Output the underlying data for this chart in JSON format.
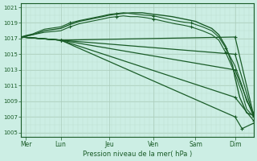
{
  "bg_color": "#cceee4",
  "grid_color_major": "#aaccbb",
  "grid_color_minor": "#bbddcc",
  "line_color": "#1a5c28",
  "tick_label_color": "#1a5c28",
  "xlabel": "Pression niveau de la mer( hPa )",
  "ylim": [
    1004.5,
    1021.5
  ],
  "yticks": [
    1005,
    1007,
    1009,
    1011,
    1013,
    1015,
    1017,
    1019,
    1021
  ],
  "xtick_labels": [
    "Mer",
    "Lun",
    "Jeu",
    "Ven",
    "Sam",
    "Dim"
  ],
  "xtick_positions": [
    0.02,
    0.17,
    0.38,
    0.57,
    0.75,
    0.92
  ],
  "lines": [
    {
      "x": [
        0.0,
        0.02,
        0.05,
        0.1,
        0.17,
        0.21,
        0.25,
        0.3,
        0.35,
        0.38,
        0.43,
        0.48,
        0.52,
        0.57,
        0.6,
        0.65,
        0.7,
        0.75,
        0.78,
        0.82,
        0.85,
        0.88,
        0.91,
        0.92,
        0.94,
        0.97,
        1.0
      ],
      "y": [
        1017.2,
        1017.3,
        1017.5,
        1018.0,
        1018.3,
        1018.8,
        1019.2,
        1019.5,
        1019.8,
        1020.0,
        1020.2,
        1020.3,
        1020.3,
        1020.1,
        1020.0,
        1019.8,
        1019.5,
        1019.2,
        1018.8,
        1018.3,
        1017.5,
        1016.0,
        1013.5,
        1012.0,
        1009.5,
        1007.5,
        1007.2
      ],
      "marker": null,
      "lw": 1.0
    },
    {
      "x": [
        0.0,
        0.02,
        0.05,
        0.1,
        0.17,
        0.21,
        0.25,
        0.3,
        0.35,
        0.38,
        0.41,
        0.44,
        0.47,
        0.5,
        0.53,
        0.57,
        0.6,
        0.63,
        0.66,
        0.7,
        0.73,
        0.75,
        0.78,
        0.82,
        0.85,
        0.88,
        0.92,
        0.95,
        0.97,
        1.0
      ],
      "y": [
        1017.2,
        1017.4,
        1017.6,
        1018.2,
        1018.5,
        1019.0,
        1019.3,
        1019.6,
        1019.9,
        1020.1,
        1020.2,
        1020.3,
        1020.2,
        1020.1,
        1020.0,
        1019.9,
        1019.7,
        1019.5,
        1019.3,
        1019.1,
        1019.0,
        1018.8,
        1018.5,
        1018.0,
        1017.2,
        1015.8,
        1013.5,
        1011.0,
        1009.0,
        1007.5
      ],
      "marker": "+",
      "lw": 0.8
    },
    {
      "x": [
        0.0,
        0.02,
        0.05,
        0.1,
        0.17,
        0.21,
        0.25,
        0.3,
        0.35,
        0.38,
        0.41,
        0.44,
        0.47,
        0.5,
        0.53,
        0.57,
        0.6,
        0.63,
        0.66,
        0.7,
        0.73,
        0.75,
        0.78,
        0.82,
        0.85,
        0.88,
        0.92,
        0.95,
        0.97,
        1.0
      ],
      "y": [
        1017.2,
        1017.3,
        1017.5,
        1017.8,
        1018.0,
        1018.5,
        1018.9,
        1019.2,
        1019.5,
        1019.7,
        1019.8,
        1019.9,
        1019.8,
        1019.8,
        1019.7,
        1019.5,
        1019.3,
        1019.1,
        1018.9,
        1018.7,
        1018.5,
        1018.3,
        1018.0,
        1017.5,
        1016.8,
        1015.2,
        1012.5,
        1010.0,
        1008.0,
        1007.0
      ],
      "marker": "+",
      "lw": 0.8
    },
    {
      "x": [
        0.0,
        0.17,
        0.92,
        1.0
      ],
      "y": [
        1017.2,
        1016.8,
        1017.2,
        1007.2
      ],
      "marker": "+",
      "lw": 0.9
    },
    {
      "x": [
        0.0,
        0.17,
        0.92,
        1.0
      ],
      "y": [
        1017.2,
        1016.8,
        1015.0,
        1007.0
      ],
      "marker": "+",
      "lw": 0.9
    },
    {
      "x": [
        0.0,
        0.17,
        0.92,
        1.0
      ],
      "y": [
        1017.2,
        1016.8,
        1013.0,
        1007.0
      ],
      "marker": "+",
      "lw": 0.9
    },
    {
      "x": [
        0.0,
        0.17,
        0.92,
        1.0
      ],
      "y": [
        1017.2,
        1016.8,
        1009.5,
        1006.5
      ],
      "marker": "+",
      "lw": 0.9
    },
    {
      "x": [
        0.0,
        0.17,
        0.92,
        0.95,
        1.0
      ],
      "y": [
        1017.2,
        1016.8,
        1007.0,
        1005.5,
        1006.2
      ],
      "marker": "+",
      "lw": 0.9
    }
  ]
}
